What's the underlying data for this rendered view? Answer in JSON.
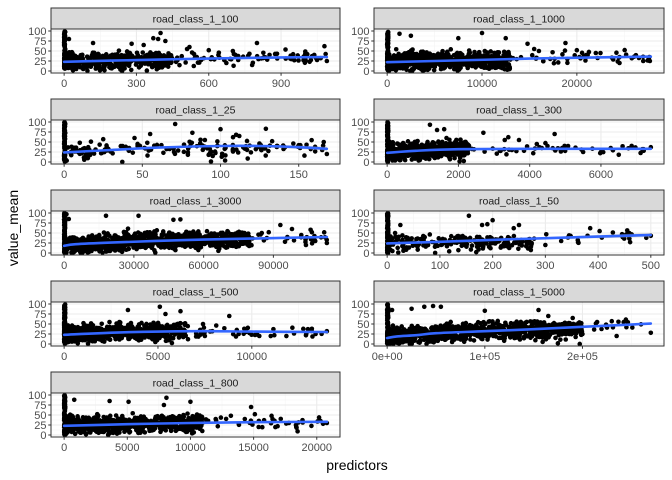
{
  "chart_data": {
    "type": "scatter",
    "title": "",
    "xlabel": "predictors",
    "ylabel": "value_mean",
    "ylim": [
      0,
      100
    ],
    "yticks": [
      0,
      25,
      50,
      75,
      100
    ],
    "ytick_labels": [
      "0",
      "25",
      "50",
      "75",
      "100"
    ],
    "grid": true,
    "colors": {
      "points": "#000000",
      "smooth": "#3366FF",
      "ci_band": "#999999",
      "strip_fill": "#D9D9D9",
      "border": "#333333",
      "grid_major": "#EBEBEB",
      "grid_minor": "#F4F4F4"
    },
    "facets": [
      {
        "label": "road_class_1_100",
        "x_max": 1090,
        "xticks": [
          0,
          300,
          600,
          900
        ],
        "xtick_labels": [
          "0",
          "300",
          "600",
          "900"
        ],
        "smooth": [
          [
            0,
            23,
            1.5
          ],
          [
            200,
            26,
            1
          ],
          [
            500,
            30,
            1
          ],
          [
            800,
            33,
            1.5
          ],
          [
            1090,
            35,
            3
          ]
        ],
        "dense": {
          "x_extent": 450,
          "y_top": 60,
          "n": 400
        },
        "sparse": {
          "x_extent": 1090,
          "n": 90
        },
        "outliers": [
          [
            400,
            95
          ],
          [
            370,
            82
          ],
          [
            390,
            80
          ],
          [
            420,
            75
          ],
          [
            800,
            70
          ],
          [
            120,
            70
          ],
          [
            280,
            68
          ],
          [
            330,
            65
          ],
          [
            520,
            60
          ],
          [
            20,
            80
          ],
          [
            1080,
            62
          ],
          [
            600,
            52
          ],
          [
            700,
            50
          ],
          [
            950,
            42
          ],
          [
            1050,
            30
          ],
          [
            1090,
            25
          ],
          [
            780,
            15
          ],
          [
            830,
            35
          ],
          [
            510,
            55
          ],
          [
            640,
            40
          ]
        ]
      },
      {
        "label": "road_class_1_1000",
        "x_max": 27800,
        "xticks": [
          0,
          10000,
          20000
        ],
        "xtick_labels": [
          "0",
          "10000",
          "20000"
        ],
        "smooth": [
          [
            0,
            22,
            0.8
          ],
          [
            5000,
            25,
            0.5
          ],
          [
            15000,
            31,
            0.7
          ],
          [
            27800,
            36,
            2
          ]
        ],
        "dense": {
          "x_extent": 13000,
          "y_top": 65,
          "n": 700
        },
        "sparse": {
          "x_extent": 27800,
          "n": 60
        },
        "outliers": [
          [
            10000,
            95
          ],
          [
            1300,
            93
          ],
          [
            2500,
            88
          ],
          [
            12500,
            82
          ],
          [
            7500,
            82
          ],
          [
            18800,
            70
          ],
          [
            14800,
            68
          ],
          [
            20000,
            52
          ],
          [
            22000,
            45
          ],
          [
            24500,
            35
          ],
          [
            24500,
            20
          ],
          [
            27000,
            25
          ],
          [
            27700,
            25
          ],
          [
            15500,
            55
          ],
          [
            16000,
            50
          ],
          [
            21000,
            38
          ],
          [
            19000,
            30
          ]
        ]
      },
      {
        "label": "road_class_1_25",
        "x_max": 168,
        "xticks": [
          0,
          50,
          100,
          150
        ],
        "xtick_labels": [
          "0",
          "50",
          "100",
          "150"
        ],
        "smooth": [
          [
            0,
            24,
            1.5
          ],
          [
            30,
            30,
            2
          ],
          [
            60,
            36,
            2
          ],
          [
            100,
            40,
            2.5
          ],
          [
            125,
            40,
            3
          ],
          [
            150,
            37,
            4
          ],
          [
            168,
            33,
            5
          ]
        ],
        "dense": {
          "x_extent": 130,
          "y_top": 55,
          "n": 120
        },
        "sparse": {
          "x_extent": 168,
          "n": 40
        },
        "outliers": [
          [
            71,
            95
          ],
          [
            100,
            82
          ],
          [
            129,
            83
          ],
          [
            82,
            73
          ],
          [
            55,
            70
          ],
          [
            110,
            68
          ],
          [
            133,
            52
          ],
          [
            168,
            20
          ],
          [
            165,
            30
          ],
          [
            155,
            43
          ],
          [
            150,
            42
          ],
          [
            95,
            15
          ],
          [
            10,
            48
          ],
          [
            25,
            57
          ],
          [
            45,
            60
          ],
          [
            108,
            62
          ],
          [
            112,
            65
          ],
          [
            90,
            55
          ]
        ]
      },
      {
        "label": "road_class_1_300",
        "x_max": 7400,
        "xticks": [
          0,
          2000,
          4000,
          6000
        ],
        "xtick_labels": [
          "0",
          "2000",
          "4000",
          "6000"
        ],
        "smooth": [
          [
            0,
            23,
            0.7
          ],
          [
            800,
            28,
            0.5
          ],
          [
            2000,
            32,
            0.7
          ],
          [
            4000,
            33,
            1.5
          ],
          [
            7400,
            33,
            3
          ]
        ],
        "dense": {
          "x_extent": 2300,
          "y_top": 75,
          "n": 600
        },
        "sparse": {
          "x_extent": 7400,
          "n": 40
        },
        "outliers": [
          [
            1200,
            93
          ],
          [
            1400,
            80
          ],
          [
            1600,
            82
          ],
          [
            2700,
            73
          ],
          [
            4700,
            70
          ],
          [
            3400,
            62
          ],
          [
            3300,
            55
          ],
          [
            3700,
            55
          ],
          [
            4200,
            45
          ],
          [
            4500,
            40
          ],
          [
            4900,
            33
          ],
          [
            5500,
            25
          ],
          [
            6000,
            25
          ],
          [
            6500,
            18
          ],
          [
            7200,
            32
          ],
          [
            7200,
            28
          ],
          [
            7400,
            37
          ],
          [
            4100,
            22
          ],
          [
            3500,
            30
          ]
        ]
      },
      {
        "label": "road_class_1_3000",
        "x_max": 113000,
        "xticks": [
          0,
          30000,
          60000,
          90000
        ],
        "xtick_labels": [
          "0",
          "30000",
          "60000",
          "90000"
        ],
        "smooth": [
          [
            0,
            18,
            0.5
          ],
          [
            5000,
            22,
            0.3
          ],
          [
            20000,
            26,
            0.3
          ],
          [
            50000,
            32,
            0.3
          ],
          [
            80000,
            36,
            0.6
          ],
          [
            113000,
            40,
            2
          ]
        ],
        "dense": {
          "x_extent": 80000,
          "y_top": 70,
          "n": 900
        },
        "sparse": {
          "x_extent": 113000,
          "n": 50
        },
        "outliers": [
          [
            1000,
            97
          ],
          [
            2000,
            85
          ],
          [
            18000,
            93
          ],
          [
            32000,
            93
          ],
          [
            47000,
            83
          ],
          [
            50000,
            84
          ],
          [
            93000,
            70
          ],
          [
            98000,
            60
          ],
          [
            106000,
            58
          ],
          [
            102000,
            45
          ],
          [
            104000,
            20
          ],
          [
            113000,
            25
          ],
          [
            108000,
            30
          ],
          [
            95000,
            28
          ],
          [
            85000,
            50
          ],
          [
            88000,
            52
          ]
        ]
      },
      {
        "label": "road_class_1_50",
        "x_max": 500,
        "xticks": [
          0,
          100,
          200,
          300,
          400,
          500
        ],
        "xtick_labels": [
          "0",
          "100",
          "200",
          "300",
          "400",
          "500"
        ],
        "smooth": [
          [
            0,
            24,
            1.5
          ],
          [
            100,
            28,
            1
          ],
          [
            250,
            35,
            2
          ],
          [
            400,
            41,
            4
          ],
          [
            500,
            45,
            5
          ]
        ],
        "dense": {
          "x_extent": 280,
          "y_top": 50,
          "n": 200
        },
        "sparse": {
          "x_extent": 500,
          "n": 30
        },
        "outliers": [
          [
            155,
            93
          ],
          [
            200,
            82
          ],
          [
            250,
            70
          ],
          [
            385,
            62
          ],
          [
            180,
            70
          ],
          [
            190,
            72
          ],
          [
            362,
            27
          ],
          [
            500,
            43
          ],
          [
            380,
            43
          ],
          [
            300,
            20
          ],
          [
            270,
            35
          ],
          [
            330,
            30
          ],
          [
            15,
            50
          ],
          [
            25,
            70
          ],
          [
            240,
            62
          ],
          [
            345,
            44
          ]
        ]
      },
      {
        "label": "road_class_1_500",
        "x_max": 14000,
        "xticks": [
          0,
          5000,
          10000
        ],
        "xtick_labels": [
          "0",
          "5000",
          "10000"
        ],
        "smooth": [
          [
            0,
            23,
            0.5
          ],
          [
            3000,
            29,
            0.4
          ],
          [
            7000,
            32,
            1
          ],
          [
            10000,
            31,
            1.5
          ],
          [
            14000,
            30,
            3
          ]
        ],
        "dense": {
          "x_extent": 6500,
          "y_top": 75,
          "n": 700
        },
        "sparse": {
          "x_extent": 14000,
          "n": 40
        },
        "outliers": [
          [
            5100,
            93
          ],
          [
            6200,
            82
          ],
          [
            8800,
            70
          ],
          [
            5400,
            75
          ],
          [
            7400,
            50
          ],
          [
            7500,
            20
          ],
          [
            9300,
            25
          ],
          [
            9600,
            38
          ],
          [
            10400,
            20
          ],
          [
            11200,
            22
          ],
          [
            13200,
            38
          ],
          [
            13400,
            25
          ],
          [
            14000,
            32
          ],
          [
            7900,
            32
          ],
          [
            6600,
            12
          ],
          [
            3400,
            85
          ]
        ]
      },
      {
        "label": "road_class_1_5000",
        "x_max": 270000,
        "xticks": [
          0,
          100000,
          200000
        ],
        "xtick_labels": [
          "0e+00",
          "1e+05",
          "2e+05"
        ],
        "smooth": [
          [
            0,
            15,
            0.5
          ],
          [
            10000,
            19,
            0.3
          ],
          [
            30000,
            22,
            0.3
          ],
          [
            50000,
            27,
            0.3
          ],
          [
            100000,
            32,
            0.4
          ],
          [
            150000,
            37,
            0.8
          ],
          [
            200000,
            43,
            1.5
          ],
          [
            270000,
            51,
            3
          ]
        ],
        "dense": {
          "x_extent": 200000,
          "y_top": 70,
          "n": 900
        },
        "sparse": {
          "x_extent": 270000,
          "n": 40
        },
        "outliers": [
          [
            5000,
            85
          ],
          [
            25000,
            88
          ],
          [
            38000,
            93
          ],
          [
            47000,
            95
          ],
          [
            55000,
            93
          ],
          [
            100000,
            83
          ],
          [
            155000,
            85
          ],
          [
            165000,
            70
          ],
          [
            190000,
            65
          ],
          [
            230000,
            57
          ],
          [
            235000,
            20
          ],
          [
            270000,
            28
          ],
          [
            245000,
            42
          ],
          [
            200000,
            25
          ],
          [
            215000,
            55
          ]
        ]
      },
      {
        "label": "road_class_1_800",
        "x_max": 20800,
        "xticks": [
          0,
          5000,
          10000,
          15000,
          20000
        ],
        "xtick_labels": [
          "0",
          "5000",
          "10000",
          "15000",
          "20000"
        ],
        "smooth": [
          [
            0,
            23,
            0.5
          ],
          [
            5000,
            27,
            0.4
          ],
          [
            10000,
            30,
            0.6
          ],
          [
            15000,
            32,
            1.2
          ],
          [
            20800,
            33,
            2.5
          ]
        ],
        "dense": {
          "x_extent": 11000,
          "y_top": 70,
          "n": 700
        },
        "sparse": {
          "x_extent": 20800,
          "n": 40
        },
        "outliers": [
          [
            800,
            88
          ],
          [
            3600,
            85
          ],
          [
            5100,
            83
          ],
          [
            8100,
            93
          ],
          [
            10000,
            83
          ],
          [
            7900,
            75
          ],
          [
            14800,
            70
          ],
          [
            15100,
            52
          ],
          [
            16500,
            40
          ],
          [
            16900,
            22
          ],
          [
            18400,
            18
          ],
          [
            20300,
            35
          ],
          [
            20500,
            28
          ],
          [
            20800,
            30
          ],
          [
            15400,
            20
          ],
          [
            13200,
            48
          ],
          [
            12000,
            40
          ]
        ]
      }
    ]
  }
}
